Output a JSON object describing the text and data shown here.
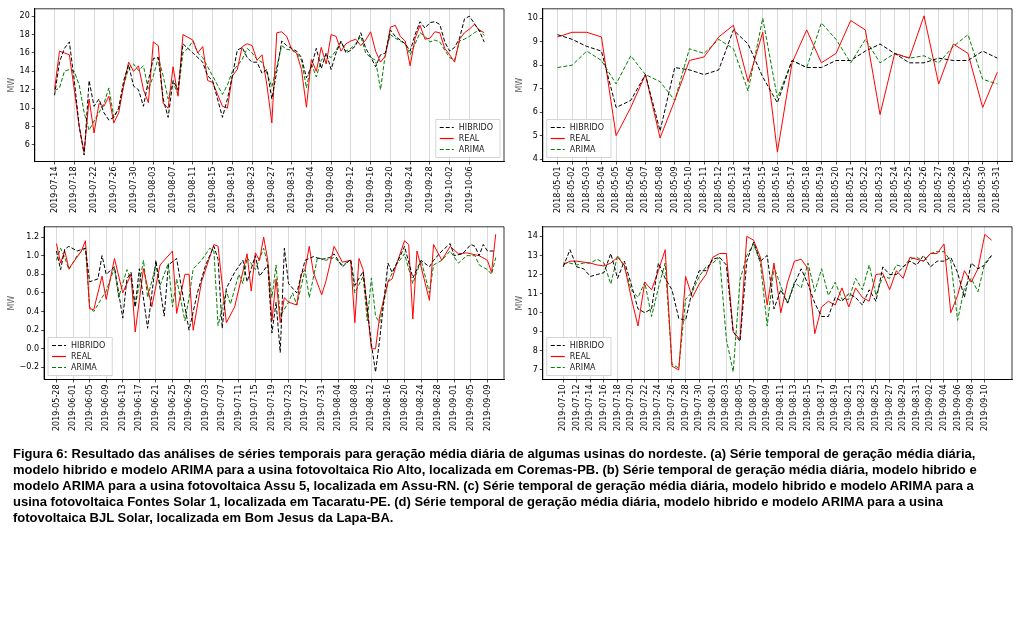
{
  "chart_data": [
    {
      "type": "line",
      "ylabel": "MW",
      "grid": "x",
      "legend": "bottom right",
      "marker": "none",
      "xlim": [
        "2019-07-10",
        "2019-10-13"
      ],
      "ylim": [
        4.2,
        20.8
      ],
      "yticks": [
        6,
        8,
        10,
        12,
        14,
        16,
        18,
        20
      ],
      "xticks": [
        "2019-07-14",
        "2019-07-18",
        "2019-07-22",
        "2019-07-26",
        "2019-07-30",
        "2019-08-03",
        "2019-08-07",
        "2019-08-11",
        "2019-08-15",
        "2019-08-19",
        "2019-08-23",
        "2019-08-27",
        "2019-08-31",
        "2019-09-04",
        "2019-09-08",
        "2019-09-12",
        "2019-09-16",
        "2019-09-20",
        "2019-09-24",
        "2019-09-28",
        "2019-10-02",
        "2019-10-06"
      ],
      "x": [
        "2019-07-14",
        "2019-07-15",
        "2019-07-16",
        "2019-07-17",
        "2019-07-18",
        "2019-07-19",
        "2019-07-20",
        "2019-07-21",
        "2019-07-22",
        "2019-07-23",
        "2019-07-24",
        "2019-07-25",
        "2019-07-26",
        "2019-07-27",
        "2019-07-28",
        "2019-07-29",
        "2019-07-30",
        "2019-07-31",
        "2019-08-01",
        "2019-08-02",
        "2019-08-03",
        "2019-08-04",
        "2019-08-05",
        "2019-08-06",
        "2019-08-07",
        "2019-08-08",
        "2019-08-09",
        "2019-08-10",
        "2019-08-11",
        "2019-08-12",
        "2019-08-13",
        "2019-08-14",
        "2019-08-15",
        "2019-08-16",
        "2019-08-17",
        "2019-08-18",
        "2019-08-19",
        "2019-08-20",
        "2019-08-21",
        "2019-08-22",
        "2019-08-23",
        "2019-08-24",
        "2019-08-25",
        "2019-08-26",
        "2019-08-27",
        "2019-08-28",
        "2019-08-29",
        "2019-08-30",
        "2019-08-31",
        "2019-09-01",
        "2019-09-02",
        "2019-09-03",
        "2019-09-04",
        "2019-09-05",
        "2019-09-06",
        "2019-09-07",
        "2019-09-08",
        "2019-09-09",
        "2019-09-10",
        "2019-09-11",
        "2019-09-12",
        "2019-09-13",
        "2019-09-14",
        "2019-09-15",
        "2019-09-16",
        "2019-09-17",
        "2019-09-18",
        "2019-09-19",
        "2019-09-20",
        "2019-09-21",
        "2019-09-22",
        "2019-09-23",
        "2019-09-24",
        "2019-09-25",
        "2019-09-26",
        "2019-09-27",
        "2019-09-28",
        "2019-09-29",
        "2019-09-30",
        "2019-10-01",
        "2019-10-02",
        "2019-10-03",
        "2019-10-04",
        "2019-10-05",
        "2019-10-06",
        "2019-10-07",
        "2019-10-08",
        "2019-10-09"
      ],
      "series": [
        {
          "name": "HIBRIDO",
          "color": "#000000",
          "line_style": "dashed",
          "values": [
            11.4,
            15,
            16.5,
            17.2,
            13,
            8,
            4.9,
            13,
            10.2,
            11,
            9.5,
            8.7,
            9,
            10,
            13,
            14.7,
            12.4,
            12,
            10.2,
            13,
            15.4,
            15.5,
            11,
            9,
            13,
            12,
            17,
            16.5,
            16,
            15.5,
            15,
            13.5,
            13,
            11,
            9,
            11,
            13.5,
            16.3,
            16.6,
            15.5,
            15,
            15,
            13.8,
            14.2,
            11,
            14,
            17.3,
            16.8,
            16.5,
            16.2,
            15.5,
            13.3,
            14.5,
            16.5,
            14.3,
            16,
            14.2,
            16,
            17.3,
            16,
            16.3,
            16.8,
            18.2,
            16.5,
            15.6,
            14.5,
            15.8,
            16,
            18.5,
            17.8,
            17.4,
            17,
            16.2,
            18,
            19.4,
            18.7,
            19.3,
            19.4,
            19.1,
            17.2,
            16.2,
            16.6,
            17.6,
            19.7,
            20,
            19.2,
            18.4,
            17.2
          ]
        },
        {
          "name": "REAL",
          "color": "#ff0000",
          "line_style": "solid",
          "values": [
            12,
            16.2,
            16,
            15.8,
            12,
            8,
            5.2,
            11,
            7.3,
            10.5,
            10.2,
            11.3,
            8.4,
            9.5,
            12.5,
            15,
            14,
            14.6,
            12,
            10.6,
            17.2,
            16.8,
            10.5,
            10,
            14.5,
            11.3,
            18,
            17.7,
            17.4,
            16,
            16.7,
            13,
            12.8,
            11.5,
            10.2,
            10,
            13.5,
            14.2,
            16.7,
            17,
            16.8,
            15.2,
            15.8,
            12.5,
            8.4,
            18.2,
            18.3,
            17.8,
            16.4,
            16,
            14.2,
            10.1,
            15.3,
            14,
            16.6,
            14.8,
            18,
            17.8,
            16.2,
            17,
            17.3,
            17.5,
            16.8,
            17.4,
            18.3,
            16.2,
            15,
            15.7,
            18.8,
            19,
            17.8,
            17.3,
            14.6,
            17.6,
            19,
            17.5,
            17.6,
            18.3,
            18.2,
            16.5,
            15.8,
            15,
            17.5,
            18.2,
            18.6,
            19.1,
            18.5,
            18.2
          ]
        },
        {
          "name": "ARIMA",
          "color": "#008000",
          "line_style": "dashed",
          "values": [
            11.9,
            12.2,
            14,
            14.2,
            14,
            12.5,
            9.5,
            7.6,
            8.6,
            9.5,
            10.5,
            12.2,
            9,
            10,
            12.5,
            14.3,
            14.8,
            14.1,
            14.6,
            12,
            13.5,
            15.5,
            13.5,
            11,
            12.8,
            11.5,
            16,
            16.5,
            17.3,
            16,
            15.5,
            14.5,
            13.5,
            12.5,
            11.5,
            12.5,
            14,
            14.6,
            15.3,
            16.5,
            16,
            15.3,
            15,
            13.8,
            12.3,
            14.5,
            16.8,
            16.4,
            16.3,
            16,
            15.2,
            12.2,
            14.8,
            13.4,
            15.2,
            15.8,
            15.5,
            16.3,
            17.2,
            16.2,
            16.5,
            17,
            17.8,
            16,
            15.5,
            15.2,
            12,
            16,
            18,
            17.6,
            17.3,
            17,
            15.8,
            17,
            18.2,
            17.8,
            17.2,
            17.4,
            17.2,
            16.3,
            15.5,
            15.2,
            17.3,
            17.5,
            17.8,
            18.2,
            18.5,
            17.9
          ]
        }
      ]
    },
    {
      "type": "line",
      "ylabel": "MW",
      "grid": "x",
      "legend": "bottom left",
      "marker": "none",
      "xlim": [
        "2018-04-30",
        "2018-06-01"
      ],
      "ylim": [
        3.9,
        10.4
      ],
      "yticks": [
        4,
        5,
        6,
        7,
        8,
        9,
        10
      ],
      "xticks": [
        "2018-05-01",
        "2018-05-02",
        "2018-05-03",
        "2018-05-04",
        "2018-05-05",
        "2018-05-06",
        "2018-05-07",
        "2018-05-08",
        "2018-05-09",
        "2018-05-10",
        "2018-05-11",
        "2018-05-12",
        "2018-05-13",
        "2018-05-14",
        "2018-05-15",
        "2018-05-16",
        "2018-05-17",
        "2018-05-18",
        "2018-05-19",
        "2018-05-20",
        "2018-05-21",
        "2018-05-22",
        "2018-05-23",
        "2018-05-24",
        "2018-05-25",
        "2018-05-26",
        "2018-05-27",
        "2018-05-28",
        "2018-05-29",
        "2018-05-30",
        "2018-05-31"
      ],
      "x": [
        "2018-05-01",
        "2018-05-02",
        "2018-05-03",
        "2018-05-04",
        "2018-05-05",
        "2018-05-06",
        "2018-05-07",
        "2018-05-08",
        "2018-05-09",
        "2018-05-10",
        "2018-05-11",
        "2018-05-12",
        "2018-05-13",
        "2018-05-14",
        "2018-05-15",
        "2018-05-16",
        "2018-05-17",
        "2018-05-18",
        "2018-05-19",
        "2018-05-20",
        "2018-05-21",
        "2018-05-22",
        "2018-05-23",
        "2018-05-24",
        "2018-05-25",
        "2018-05-26",
        "2018-05-27",
        "2018-05-28",
        "2018-05-29",
        "2018-05-30",
        "2018-05-31"
      ],
      "series": [
        {
          "name": "HIBRIDO",
          "color": "#000000",
          "line_style": "dashed",
          "values": [
            9.3,
            9.1,
            8.8,
            8.6,
            6.2,
            6.5,
            7.6,
            5.2,
            7.9,
            7.8,
            7.6,
            7.8,
            9.5,
            8.9,
            7.5,
            6.4,
            8.2,
            7.9,
            7.9,
            8.2,
            8.2,
            8.6,
            8.9,
            8.5,
            8.1,
            8.1,
            8.3,
            8.2,
            8.2,
            8.6,
            8.3
          ]
        },
        {
          "name": "REAL",
          "color": "#ff0000",
          "line_style": "solid",
          "values": [
            9.2,
            9.4,
            9.4,
            9.2,
            5,
            6.2,
            7.6,
            4.9,
            6.5,
            8.2,
            8.35,
            9.2,
            9.7,
            7.3,
            9.4,
            4.3,
            8.1,
            9.5,
            8.1,
            8.5,
            9.9,
            9.5,
            5.9,
            8.5,
            8.3,
            10.1,
            7.2,
            8.9,
            8.5,
            6.2,
            7.7
          ]
        },
        {
          "name": "ARIMA",
          "color": "#008000",
          "line_style": "dashed",
          "values": [
            7.9,
            8,
            8.6,
            8.2,
            7.2,
            8.4,
            7.6,
            7.3,
            6.5,
            8.7,
            8.5,
            9.1,
            8.7,
            6.9,
            10,
            6.6,
            8.2,
            7.9,
            9.8,
            9.1,
            8.1,
            9.1,
            8.1,
            8.5,
            8.3,
            8.4,
            8.1,
            8.8,
            9.3,
            7.4,
            7.2
          ]
        }
      ]
    },
    {
      "type": "line",
      "ylabel": "MW",
      "grid": "x",
      "legend": "bottom left",
      "marker": "none",
      "xlim": [
        "2019-05-25",
        "2019-09-13"
      ],
      "ylim": [
        -0.33,
        1.31
      ],
      "yticks": [
        {
          "value": -0.2,
          "label": "−0.2"
        },
        {
          "value": 0,
          "label": "0.0"
        },
        {
          "value": 0.2,
          "label": "0.2"
        },
        {
          "value": 0.4,
          "label": "0.4"
        },
        {
          "value": 0.6,
          "label": "0.6"
        },
        {
          "value": 0.8,
          "label": "0.8"
        },
        {
          "value": 1,
          "label": "1.0"
        },
        {
          "value": 1.2,
          "label": "1.2"
        }
      ],
      "xticks": [
        "2019-05-28",
        "2019-06-01",
        "2019-06-05",
        "2019-06-09",
        "2019-06-13",
        "2019-06-17",
        "2019-06-21",
        "2019-06-25",
        "2019-06-29",
        "2019-07-03",
        "2019-07-07",
        "2019-07-11",
        "2019-07-15",
        "2019-07-19",
        "2019-07-23",
        "2019-07-27",
        "2019-07-31",
        "2019-08-04",
        "2019-08-08",
        "2019-08-12",
        "2019-08-16",
        "2019-08-20",
        "2019-08-24",
        "2019-08-28",
        "2019-09-01",
        "2019-09-05",
        "2019-09-09"
      ],
      "series": [
        {
          "name": "HIBRIDO",
          "color": "#000000",
          "line_style": "dashed",
          "x": [
            "2019-05-28",
            "2019-05-29",
            "2019-05-30",
            "2019-05-31",
            "2019-06-02",
            "2019-06-04",
            "2019-06-05",
            "2019-06-07",
            "2019-06-08",
            "2019-06-09",
            "2019-06-11",
            "2019-06-13",
            "2019-06-14",
            "2019-06-15",
            "2019-06-16",
            "2019-06-17",
            "2019-06-19",
            "2019-06-21",
            "2019-06-23",
            "2019-06-24",
            "2019-06-26",
            "2019-06-27",
            "2019-06-29",
            "2019-07-01",
            "2019-07-03",
            "2019-07-05",
            "2019-07-06",
            "2019-07-07",
            "2019-07-08",
            "2019-07-10",
            "2019-07-12",
            "2019-07-13",
            "2019-07-15",
            "2019-07-16",
            "2019-07-18",
            "2019-07-19",
            "2019-07-20",
            "2019-07-21",
            "2019-07-22",
            "2019-07-23",
            "2019-07-25",
            "2019-07-27",
            "2019-07-29",
            "2019-07-31",
            "2019-08-02",
            "2019-08-03",
            "2019-08-05",
            "2019-08-07",
            "2019-08-08",
            "2019-08-10",
            "2019-08-12",
            "2019-08-13",
            "2019-08-14",
            "2019-08-16",
            "2019-08-17",
            "2019-08-19",
            "2019-08-20",
            "2019-08-22",
            "2019-08-24",
            "2019-08-26",
            "2019-08-27",
            "2019-08-29",
            "2019-08-31",
            "2019-09-01",
            "2019-09-03",
            "2019-09-05",
            "2019-09-06",
            "2019-09-07",
            "2019-09-08",
            "2019-09-09",
            "2019-09-11"
          ],
          "values": [
            1.05,
            0.85,
            1.07,
            1.1,
            1.05,
            1.08,
            0.72,
            0.75,
            1.0,
            0.8,
            0.88,
            0.33,
            0.75,
            0.82,
            0.45,
            0.86,
            0.22,
            0.95,
            0.35,
            0.9,
            0.97,
            0.7,
            0.2,
            0.6,
            0.9,
            1.1,
            0.96,
            0.22,
            0.65,
            0.82,
            0.95,
            0.72,
            1.0,
            0.78,
            0.9,
            0.17,
            0.5,
            -0.04,
            1.08,
            0.7,
            0.6,
            0.95,
            0.99,
            0.96,
            0.98,
            1.02,
            0.88,
            0.96,
            0.68,
            0.83,
            0.05,
            -0.25,
            0.1,
            0.92,
            0.82,
            1.0,
            1.1,
            0.76,
            0.95,
            0.88,
            0.95,
            1.05,
            1.13,
            1.0,
            1.02,
            1.12,
            1.1,
            1.0,
            1.12,
            1.05,
            1.05
          ]
        },
        {
          "name": "REAL",
          "color": "#ff0000",
          "line_style": "solid",
          "x": [
            "2019-05-28",
            "2019-05-29",
            "2019-05-30",
            "2019-05-31",
            "2019-06-03",
            "2019-06-04",
            "2019-06-05",
            "2019-06-06",
            "2019-06-08",
            "2019-06-09",
            "2019-06-11",
            "2019-06-13",
            "2019-06-15",
            "2019-06-16",
            "2019-06-18",
            "2019-06-20",
            "2019-06-22",
            "2019-06-25",
            "2019-06-26",
            "2019-06-28",
            "2019-06-29",
            "2019-06-30",
            "2019-07-02",
            "2019-07-05",
            "2019-07-06",
            "2019-07-08",
            "2019-07-10",
            "2019-07-13",
            "2019-07-14",
            "2019-07-15",
            "2019-07-16",
            "2019-07-17",
            "2019-07-18",
            "2019-07-19",
            "2019-07-20",
            "2019-07-21",
            "2019-07-22",
            "2019-07-23",
            "2019-07-25",
            "2019-07-26",
            "2019-07-27",
            "2019-07-28",
            "2019-07-29",
            "2019-07-31",
            "2019-08-01",
            "2019-08-03",
            "2019-08-05",
            "2019-08-07",
            "2019-08-08",
            "2019-08-09",
            "2019-08-10",
            "2019-08-12",
            "2019-08-13",
            "2019-08-14",
            "2019-08-16",
            "2019-08-17",
            "2019-08-18",
            "2019-08-20",
            "2019-08-21",
            "2019-08-22",
            "2019-08-23",
            "2019-08-24",
            "2019-08-26",
            "2019-08-27",
            "2019-08-29",
            "2019-08-31",
            "2019-09-02",
            "2019-09-04",
            "2019-09-07",
            "2019-09-09",
            "2019-09-10",
            "2019-09-11"
          ],
          "values": [
            1.13,
            0.92,
            1.05,
            0.86,
            1.05,
            1.16,
            0.43,
            0.42,
            0.78,
            0.53,
            0.97,
            0.6,
            0.8,
            0.18,
            0.86,
            0.45,
            0.9,
            1.05,
            0.38,
            0.8,
            0.8,
            0.2,
            0.72,
            1.12,
            1.1,
            0.28,
            0.45,
            1.02,
            0.62,
            1.03,
            0.95,
            1.2,
            0.95,
            0.3,
            0.75,
            0.28,
            0.55,
            0.5,
            0.47,
            0.8,
            0.85,
            1.1,
            0.82,
            0.58,
            0.72,
            1.1,
            0.93,
            0.95,
            0.28,
            0.97,
            0.85,
            0.0,
            0.0,
            0.35,
            0.72,
            0.75,
            0.9,
            1.16,
            1.12,
            0.32,
            1.05,
            0.88,
            0.52,
            1.12,
            0.95,
            1.1,
            1.02,
            1.03,
            1.0,
            0.95,
            0.82,
            1.23
          ]
        },
        {
          "name": "ARIMA",
          "color": "#008000",
          "line_style": "dashed",
          "x": [
            "2019-05-28",
            "2019-05-29",
            "2019-05-30",
            "2019-05-31",
            "2019-06-02",
            "2019-06-04",
            "2019-06-05",
            "2019-06-06",
            "2019-06-08",
            "2019-06-09",
            "2019-06-11",
            "2019-06-12",
            "2019-06-14",
            "2019-06-15",
            "2019-06-16",
            "2019-06-18",
            "2019-06-19",
            "2019-06-21",
            "2019-06-22",
            "2019-06-24",
            "2019-06-25",
            "2019-06-26",
            "2019-06-28",
            "2019-06-29",
            "2019-06-30",
            "2019-07-02",
            "2019-07-04",
            "2019-07-05",
            "2019-07-06",
            "2019-07-08",
            "2019-07-09",
            "2019-07-11",
            "2019-07-12",
            "2019-07-13",
            "2019-07-15",
            "2019-07-17",
            "2019-07-18",
            "2019-07-19",
            "2019-07-20",
            "2019-07-21",
            "2019-07-23",
            "2019-07-24",
            "2019-07-25",
            "2019-07-27",
            "2019-07-28",
            "2019-07-30",
            "2019-08-01",
            "2019-08-03",
            "2019-08-05",
            "2019-08-07",
            "2019-08-08",
            "2019-08-10",
            "2019-08-11",
            "2019-08-12",
            "2019-08-13",
            "2019-08-14",
            "2019-08-16",
            "2019-08-18",
            "2019-08-20",
            "2019-08-22",
            "2019-08-24",
            "2019-08-26",
            "2019-08-27",
            "2019-08-29",
            "2019-08-31",
            "2019-09-02",
            "2019-09-04",
            "2019-09-06",
            "2019-09-07",
            "2019-09-09",
            "2019-09-10",
            "2019-09-11"
          ],
          "values": [
            0.95,
            1.08,
            0.98,
            0.85,
            1.0,
            1.08,
            0.45,
            0.4,
            0.55,
            0.62,
            0.87,
            0.55,
            0.85,
            0.75,
            0.45,
            0.95,
            0.55,
            0.9,
            0.68,
            0.92,
            0.45,
            0.75,
            0.3,
            0.55,
            0.86,
            0.95,
            1.08,
            1.05,
            0.25,
            0.62,
            0.48,
            0.8,
            0.7,
            0.98,
            0.85,
            1.08,
            0.9,
            0.55,
            0.9,
            0.35,
            0.5,
            0.6,
            0.47,
            0.85,
            0.55,
            0.98,
            0.95,
            0.98,
            0.9,
            0.95,
            0.6,
            0.78,
            0.3,
            0.76,
            0.35,
            0.28,
            0.72,
            0.9,
            1.02,
            0.7,
            0.95,
            0.6,
            0.9,
            0.95,
            1.05,
            0.92,
            1.0,
            1.0,
            0.9,
            0.85,
            0.8,
            0.98
          ]
        }
      ]
    },
    {
      "type": "line",
      "ylabel": "MW",
      "grid": "x",
      "legend": "bottom left",
      "marker": "none",
      "xlim": [
        "2019-07-07",
        "2019-09-14"
      ],
      "ylim": [
        6.5,
        14.5
      ],
      "yticks": [
        7,
        8,
        9,
        10,
        11,
        12,
        13,
        14
      ],
      "xticks": [
        "2019-07-10",
        "2019-07-12",
        "2019-07-14",
        "2019-07-16",
        "2019-07-18",
        "2019-07-20",
        "2019-07-22",
        "2019-07-24",
        "2019-07-26",
        "2019-07-28",
        "2019-07-30",
        "2019-08-01",
        "2019-08-03",
        "2019-08-05",
        "2019-08-07",
        "2019-08-09",
        "2019-08-11",
        "2019-08-13",
        "2019-08-15",
        "2019-08-17",
        "2019-08-19",
        "2019-08-21",
        "2019-08-23",
        "2019-08-25",
        "2019-08-27",
        "2019-08-29",
        "2019-08-31",
        "2019-09-02",
        "2019-09-04",
        "2019-09-06",
        "2019-09-08",
        "2019-09-10"
      ],
      "x": [
        "2019-07-10",
        "2019-07-11",
        "2019-07-12",
        "2019-07-13",
        "2019-07-14",
        "2019-07-15",
        "2019-07-16",
        "2019-07-17",
        "2019-07-18",
        "2019-07-19",
        "2019-07-20",
        "2019-07-21",
        "2019-07-22",
        "2019-07-23",
        "2019-07-24",
        "2019-07-25",
        "2019-07-26",
        "2019-07-27",
        "2019-07-28",
        "2019-07-29",
        "2019-07-30",
        "2019-07-31",
        "2019-08-01",
        "2019-08-02",
        "2019-08-03",
        "2019-08-04",
        "2019-08-05",
        "2019-08-06",
        "2019-08-07",
        "2019-08-08",
        "2019-08-09",
        "2019-08-10",
        "2019-08-11",
        "2019-08-12",
        "2019-08-13",
        "2019-08-14",
        "2019-08-15",
        "2019-08-16",
        "2019-08-17",
        "2019-08-18",
        "2019-08-19",
        "2019-08-20",
        "2019-08-21",
        "2019-08-22",
        "2019-08-23",
        "2019-08-24",
        "2019-08-25",
        "2019-08-26",
        "2019-08-27",
        "2019-08-28",
        "2019-08-29",
        "2019-08-30",
        "2019-08-31",
        "2019-09-01",
        "2019-09-02",
        "2019-09-03",
        "2019-09-04",
        "2019-09-05",
        "2019-09-06",
        "2019-09-07",
        "2019-09-08",
        "2019-09-09",
        "2019-09-10",
        "2019-09-11"
      ],
      "series": [
        {
          "name": "HIBRIDO",
          "color": "#000000",
          "line_style": "dashed",
          "values": [
            12.4,
            13.3,
            12.4,
            12.3,
            11.9,
            12,
            12.1,
            13.1,
            11.8,
            12.7,
            11.5,
            10.2,
            10,
            10.2,
            12.6,
            11.8,
            11.2,
            9.7,
            9.6,
            11.2,
            12.2,
            12.2,
            12.8,
            12.9,
            12.5,
            9,
            8.5,
            12.7,
            13.7,
            12.7,
            13,
            10.2,
            11.2,
            10.5,
            11.5,
            12.3,
            11.5,
            10.5,
            9.8,
            9.8,
            10.8,
            10.6,
            11,
            10.8,
            10.4,
            11.2,
            10.6,
            12.4,
            12,
            12,
            12.4,
            12.7,
            12.5,
            13,
            12.4,
            12.7,
            12.7,
            12.9,
            12.1,
            10.8,
            12.6,
            12.3,
            12.5,
            13
          ]
        },
        {
          "name": "REAL",
          "color": "#ff0000",
          "line_style": "solid",
          "values": [
            12.5,
            12.7,
            12.7,
            12.65,
            12.6,
            12.5,
            12.45,
            12.6,
            12.9,
            12.5,
            10.8,
            9.3,
            11.6,
            11.2,
            12.2,
            13.3,
            7.2,
            7,
            11.9,
            10.8,
            11.5,
            12,
            12.9,
            13.1,
            13.1,
            9,
            8.6,
            14,
            13.8,
            12.9,
            10.4,
            12.6,
            10,
            11.6,
            12.7,
            12.8,
            12.3,
            8.9,
            10.3,
            10.6,
            10.4,
            11.3,
            10.3,
            11.3,
            10.8,
            10.6,
            12,
            12.05,
            11.2,
            12.2,
            11.8,
            12.9,
            12.8,
            12.7,
            13.1,
            13.1,
            13.6,
            10,
            10.9,
            12.2,
            11.6,
            12.3,
            14.1,
            13.8
          ]
        },
        {
          "name": "ARIMA",
          "color": "#008000",
          "line_style": "dashed",
          "values": [
            12.6,
            12.6,
            12.5,
            12.6,
            12.6,
            12.8,
            12.6,
            11.5,
            13,
            12.4,
            11.2,
            10.8,
            11.6,
            9.8,
            11.3,
            12.6,
            7.3,
            7.1,
            10.7,
            11.1,
            11.9,
            12.4,
            12.6,
            12.9,
            8.6,
            6.9,
            11.7,
            13,
            13.6,
            12.6,
            9.3,
            12.4,
            11.4,
            10.5,
            11.6,
            11.3,
            12.6,
            11.1,
            12.3,
            10.9,
            11.6,
            10.7,
            10.7,
            11.8,
            11.2,
            12.5,
            10.9,
            11.9,
            11.8,
            12.5,
            12.4,
            12.8,
            12.9,
            12.7,
            13.1,
            13.2,
            13.2,
            12.7,
            9.6,
            11.3,
            11.8,
            11.1,
            12.6,
            13
          ]
        }
      ]
    },
    {
      "type": "other",
      "annotations": [
        "Figura 6: Resultado das análises de séries temporais para geração média diária de algumas usinas do nordeste. (a) Série temporal de geração média diária, modelo hibrido e modelo ARIMA para a usina fotovoltaica Rio Alto, localizada em Coremas-PB. (b) Série temporal de geração média diária, modelo hibrido e modelo ARIMA para a usina fotovoltaica Assu 5, localizada em Assu-RN. (c) Série temporal de geração média diária, modelo hibrido e modelo ARIMA para a usina fotovoltaica Fontes Solar 1, localizada em Tacaratu-PE. (d) Série temporal de geração média diária, modelo hibrido e modelo ARIMA para a usina fotovoltaica BJL Solar, localizada em Bom Jesus da Lapa-BA."
      ]
    }
  ]
}
